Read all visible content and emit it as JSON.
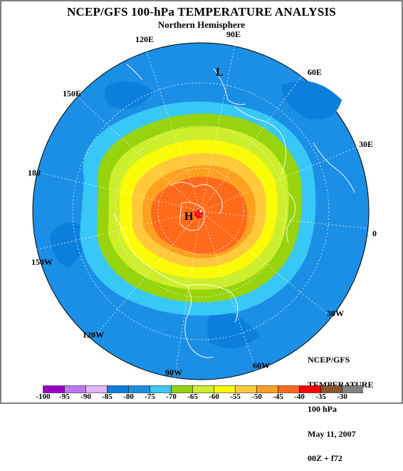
{
  "header": {
    "title": "NCEP/GFS 100-hPa TEMPERATURE ANALYSIS",
    "subtitle": "Northern Hemisphere"
  },
  "map": {
    "projection": "north polar stereographic",
    "longitude_labels": {
      "lon_90E": "90E",
      "lon_60E": "60E",
      "lon_30E": "30E",
      "lon_0": "0",
      "lon_30W": "30W",
      "lon_60W": "60W",
      "lon_90W": "90W",
      "lon_120W": "120W",
      "lon_150W": "150W",
      "lon_180": "180",
      "lon_150E": "150E",
      "lon_120E": "120E"
    },
    "high_marker": "H",
    "low_marker": "L",
    "ocean_color": "#1b8fe6",
    "coastline_color": "#ffffff"
  },
  "info_box": {
    "lines": [
      "NCEP/GFS",
      "TEMPERATURE",
      "100 hPa",
      "May 11, 2007",
      "00Z + f72"
    ]
  },
  "legend": {
    "bins": [
      {
        "from": -100,
        "to": -95,
        "color": "#9a00c8"
      },
      {
        "from": -95,
        "to": -90,
        "color": "#be76f0"
      },
      {
        "from": -90,
        "to": -85,
        "color": "#e2b6ff"
      },
      {
        "from": -85,
        "to": -80,
        "color": "#0c7fdc"
      },
      {
        "from": -80,
        "to": -75,
        "color": "#1b8fe6"
      },
      {
        "from": -75,
        "to": -70,
        "color": "#38c8f8"
      },
      {
        "from": -70,
        "to": -65,
        "color": "#97d40c"
      },
      {
        "from": -65,
        "to": -60,
        "color": "#cdee2a"
      },
      {
        "from": -60,
        "to": -55,
        "color": "#fbfb07"
      },
      {
        "from": -55,
        "to": -50,
        "color": "#ffc93a"
      },
      {
        "from": -50,
        "to": -45,
        "color": "#ffa021"
      },
      {
        "from": -45,
        "to": -40,
        "color": "#ff6a1a"
      },
      {
        "from": -40,
        "to": -35,
        "color": "#ff0000"
      },
      {
        "from": -35,
        "to": -30,
        "color": "#8c5530"
      },
      {
        "from": -30,
        "to": null,
        "color": "#808080"
      }
    ],
    "tick_labels": [
      "-100",
      "-95",
      "-90",
      "-85",
      "-80",
      "-75",
      "-70",
      "-65",
      "-60",
      "-55",
      "-50",
      "-45",
      "-40",
      "-35",
      "-30"
    ]
  }
}
